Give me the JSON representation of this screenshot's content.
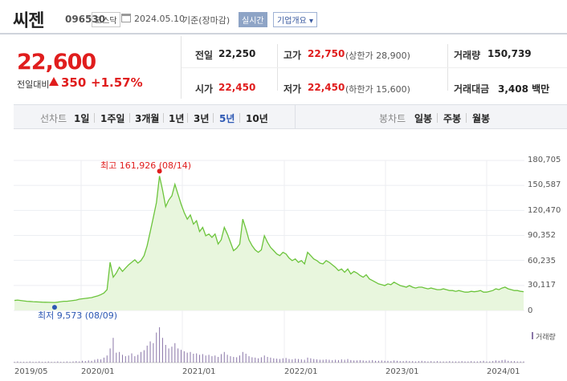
{
  "header": {
    "name": "씨젠",
    "code": "096530",
    "market": "코스닥",
    "date": "2024.05.10",
    "basis": "기준(장마감)",
    "live_label": "실시간",
    "info_label": "기업개요 ▾"
  },
  "price": {
    "current": "22,600",
    "change_label": "전일대비",
    "change": "350",
    "change_rate": "+1.57%"
  },
  "stats": {
    "prev_close_label": "전일",
    "prev_close": "22,250",
    "high_label": "고가",
    "high": "22,750",
    "upper_limit": "(상한가 28,900)",
    "volume_label": "거래량",
    "volume": "150,739",
    "open_label": "시가",
    "open": "22,450",
    "low_label": "저가",
    "low": "22,450",
    "lower_limit": "(하한가 15,600)",
    "amount_label": "거래대금",
    "amount": "3,408 백만"
  },
  "tabs": {
    "line_label": "선차트",
    "periods": [
      "1일",
      "1주일",
      "3개월",
      "1년",
      "3년",
      "5년",
      "10년"
    ],
    "active": "5년",
    "candle_label": "봉차트",
    "candles": [
      "일봉",
      "주봉",
      "월봉"
    ]
  },
  "chart_data": {
    "type": "area",
    "y_ticks": [
      "180,705",
      "150,587",
      "120,470",
      "90,352",
      "60,235",
      "30,117",
      "0"
    ],
    "ylim": [
      0,
      180705
    ],
    "x_ticks": [
      "2019/05",
      "2020/01",
      "2021/01",
      "2022/01",
      "2023/01",
      "2024/01"
    ],
    "high_annotation": "최고 161,926 (08/14)",
    "low_annotation": "최저 9,573 (08/09)",
    "volume_label": "거래량",
    "colors": {
      "line": "#6cc43c",
      "fill": "#e8f6dd",
      "high": "#e01d1d",
      "low": "#2d58b4",
      "volume": "#8a76a8"
    },
    "series": [
      {
        "values": [
          12000,
          12500,
          12000,
          11500,
          11000,
          10800,
          10500,
          10300,
          10100,
          10000,
          9900,
          9800,
          9700,
          9573,
          10000,
          10500,
          11000,
          11000,
          11500,
          12000,
          12500,
          13500,
          14000,
          14500,
          15000,
          15500,
          16500,
          17500,
          19000,
          21000,
          25000,
          58000,
          40000,
          45000,
          52000,
          47000,
          51000,
          55000,
          58000,
          61000,
          57000,
          60000,
          66000,
          78000,
          95000,
          112000,
          130000,
          161926,
          145000,
          125000,
          133000,
          138000,
          152000,
          140000,
          128000,
          118000,
          110000,
          115000,
          104000,
          108000,
          95000,
          100000,
          90000,
          92000,
          88000,
          92000,
          80000,
          85000,
          100000,
          92000,
          82000,
          72000,
          75000,
          80000,
          110000,
          98000,
          85000,
          78000,
          73000,
          70000,
          73000,
          90000,
          82000,
          76000,
          72000,
          68000,
          66000,
          70000,
          68000,
          63000,
          60000,
          62000,
          58000,
          60000,
          56000,
          70000,
          66000,
          62000,
          60000,
          57000,
          56000,
          60000,
          58000,
          55000,
          52000,
          48000,
          50000,
          46000,
          50000,
          44000,
          47000,
          45000,
          42000,
          40000,
          43000,
          38000,
          36000,
          34000,
          32000,
          31000,
          30000,
          32000,
          31000,
          34000,
          32000,
          30000,
          29000,
          28000,
          30000,
          28000,
          27000,
          28000,
          28000,
          27000,
          26000,
          27000,
          26000,
          25000,
          25000,
          26000,
          25000,
          24000,
          24000,
          23000,
          24000,
          23000,
          22000,
          22000,
          23000,
          22500,
          23000,
          24000,
          22000,
          22000,
          23000,
          24000,
          26000,
          25000,
          27000,
          28000,
          26000,
          25000,
          24000,
          24000,
          23000,
          22600
        ]
      }
    ],
    "volume_values": [
      2,
      3,
      2,
      2,
      2,
      3,
      2,
      2,
      3,
      2,
      2,
      3,
      2,
      2,
      3,
      2,
      2,
      3,
      2,
      3,
      4,
      3,
      5,
      4,
      6,
      5,
      8,
      10,
      9,
      14,
      20,
      40,
      70,
      28,
      30,
      22,
      18,
      20,
      26,
      18,
      22,
      30,
      35,
      48,
      60,
      55,
      85,
      100,
      70,
      50,
      40,
      45,
      55,
      40,
      36,
      32,
      28,
      30,
      25,
      26,
      22,
      24,
      20,
      22,
      18,
      20,
      16,
      24,
      30,
      22,
      18,
      16,
      15,
      20,
      30,
      25,
      18,
      15,
      14,
      12,
      15,
      20,
      16,
      14,
      12,
      11,
      10,
      12,
      13,
      10,
      9,
      11,
      10,
      9,
      8,
      14,
      12,
      10,
      9,
      8,
      8,
      9,
      8,
      7,
      8,
      7,
      9,
      8,
      10,
      7,
      6,
      6,
      7,
      6,
      5,
      6,
      7,
      5,
      5,
      6,
      5,
      5,
      4,
      6,
      5,
      4,
      4,
      5,
      4,
      4,
      3,
      4,
      5,
      4,
      3,
      4,
      3,
      4,
      3,
      3,
      3,
      4,
      3,
      3,
      3,
      4,
      3,
      3,
      4,
      3,
      3,
      4,
      5,
      3,
      3,
      4,
      6,
      5,
      7,
      8,
      5,
      4,
      4,
      3,
      3,
      3
    ]
  }
}
